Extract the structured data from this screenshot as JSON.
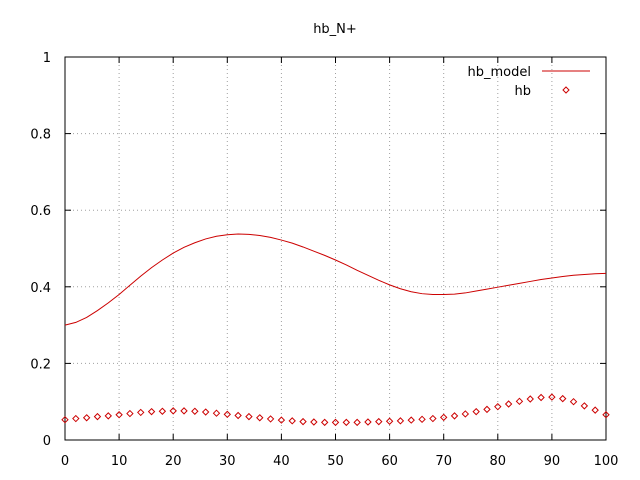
{
  "chart_data": {
    "type": "line",
    "title": "hb_N+",
    "xlabel": "",
    "ylabel": "",
    "xlim": [
      0,
      100
    ],
    "ylim": [
      0,
      1
    ],
    "x_ticks": [
      "0",
      "10",
      "20",
      "30",
      "40",
      "50",
      "60",
      "70",
      "80",
      "90",
      "100"
    ],
    "y_ticks": [
      "0",
      "0.2",
      "0.4",
      "0.6",
      "0.8",
      "1"
    ],
    "grid": true,
    "legend_position": "top-right",
    "series": [
      {
        "name": "hb_model",
        "style": "line",
        "color": "#cc0000",
        "x": [
          0,
          2,
          4,
          6,
          8,
          10,
          12,
          14,
          16,
          18,
          20,
          22,
          24,
          26,
          28,
          30,
          32,
          34,
          36,
          38,
          40,
          42,
          44,
          46,
          48,
          50,
          52,
          54,
          56,
          58,
          60,
          62,
          64,
          66,
          68,
          70,
          72,
          74,
          76,
          78,
          80,
          82,
          84,
          86,
          88,
          90,
          92,
          94,
          96,
          98,
          100
        ],
        "y": [
          0.3,
          0.307,
          0.32,
          0.338,
          0.358,
          0.38,
          0.404,
          0.428,
          0.45,
          0.47,
          0.488,
          0.503,
          0.515,
          0.525,
          0.532,
          0.536,
          0.538,
          0.537,
          0.534,
          0.529,
          0.522,
          0.514,
          0.504,
          0.493,
          0.482,
          0.47,
          0.457,
          0.443,
          0.43,
          0.417,
          0.405,
          0.395,
          0.387,
          0.382,
          0.38,
          0.38,
          0.381,
          0.384,
          0.389,
          0.394,
          0.399,
          0.404,
          0.409,
          0.414,
          0.419,
          0.423,
          0.427,
          0.43,
          0.432,
          0.434,
          0.435
        ]
      },
      {
        "name": "hb",
        "style": "points",
        "marker": "diamond",
        "color": "#cc0000",
        "x": [
          0,
          2,
          4,
          6,
          8,
          10,
          12,
          14,
          16,
          18,
          20,
          22,
          24,
          26,
          28,
          30,
          32,
          34,
          36,
          38,
          40,
          42,
          44,
          46,
          48,
          50,
          52,
          54,
          56,
          58,
          60,
          62,
          64,
          66,
          68,
          70,
          72,
          74,
          76,
          78,
          80,
          82,
          84,
          86,
          88,
          90,
          92,
          94,
          96,
          98,
          100
        ],
        "y": [
          0.053,
          0.056,
          0.058,
          0.061,
          0.063,
          0.066,
          0.069,
          0.072,
          0.074,
          0.075,
          0.076,
          0.076,
          0.075,
          0.073,
          0.07,
          0.067,
          0.064,
          0.061,
          0.058,
          0.055,
          0.052,
          0.05,
          0.048,
          0.047,
          0.046,
          0.046,
          0.046,
          0.046,
          0.047,
          0.048,
          0.049,
          0.05,
          0.052,
          0.054,
          0.056,
          0.059,
          0.063,
          0.068,
          0.074,
          0.08,
          0.087,
          0.094,
          0.101,
          0.107,
          0.111,
          0.112,
          0.108,
          0.1,
          0.089,
          0.078,
          0.066
        ]
      }
    ]
  }
}
